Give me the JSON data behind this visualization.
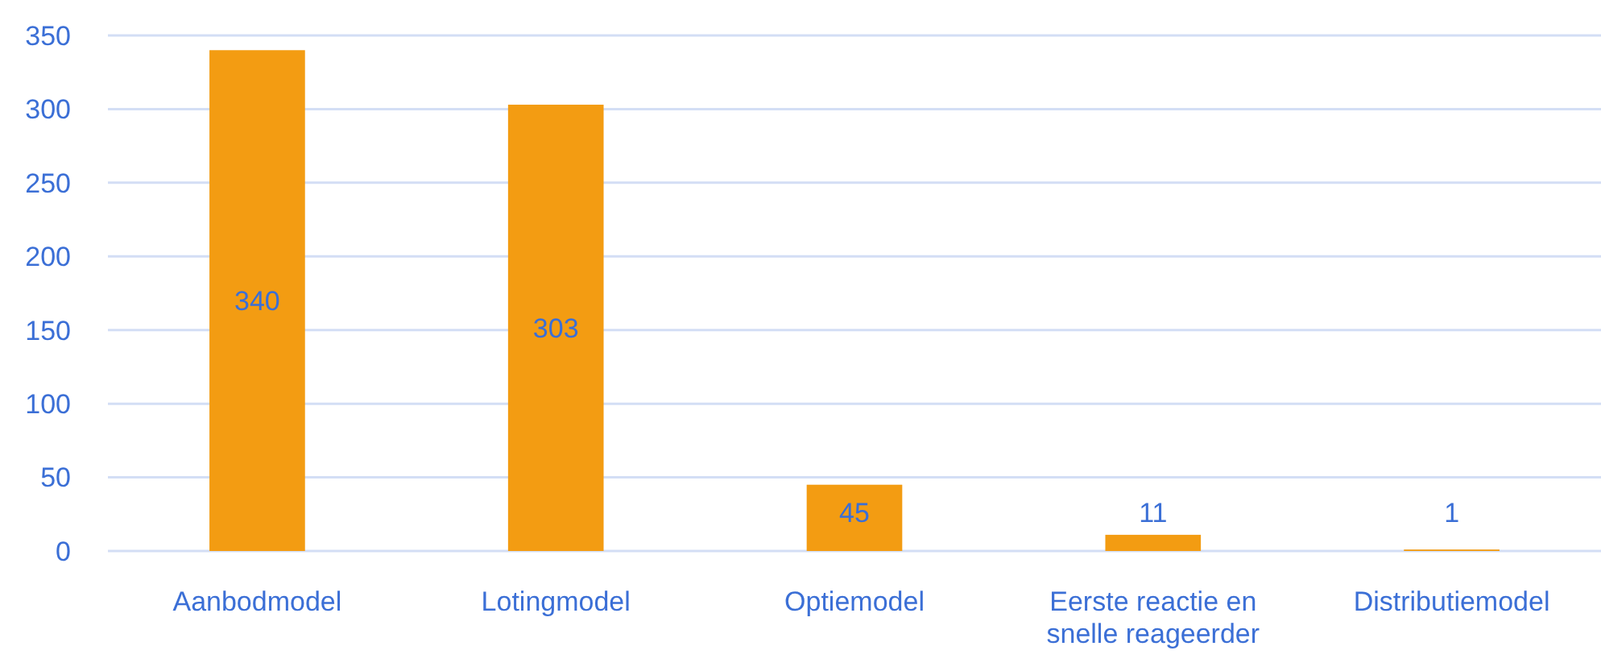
{
  "chart_data": {
    "type": "bar",
    "categories": [
      "Aanbodmodel",
      "Lotingmodel",
      "Optiemodel",
      "Eerste reactie en snelle reageerder",
      "Distributiemodel"
    ],
    "values": [
      340,
      303,
      45,
      11,
      1
    ],
    "color": "#f39c12",
    "ylim": [
      0,
      350
    ],
    "yticks": [
      0,
      50,
      100,
      150,
      200,
      250,
      300,
      350
    ],
    "grid": "y",
    "data_labels": true
  }
}
